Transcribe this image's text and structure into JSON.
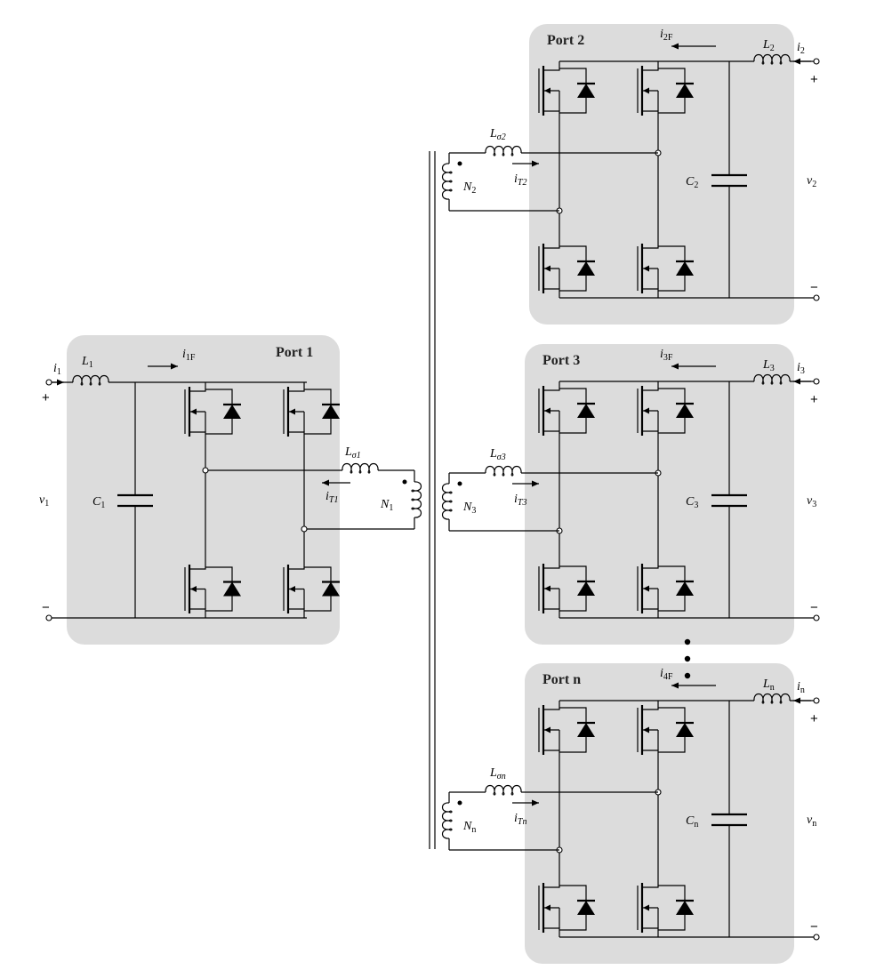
{
  "ports": [
    {
      "id": "1",
      "title": "Port 1",
      "L": "1",
      "C": "1",
      "v": "1",
      "i": "1",
      "iF": "1F",
      "Ls": "σ1",
      "iT": "T1",
      "N": "1"
    },
    {
      "id": "2",
      "title": "Port 2",
      "L": "2",
      "C": "2",
      "v": "2",
      "i": "2",
      "iF": "2F",
      "Ls": "σ2",
      "iT": "T2",
      "N": "2"
    },
    {
      "id": "3",
      "title": "Port 3",
      "L": "3",
      "C": "3",
      "v": "3",
      "i": "3",
      "iF": "3F",
      "Ls": "σ3",
      "iT": "T3",
      "N": "3"
    },
    {
      "id": "n",
      "title": "Port n",
      "L": "n",
      "C": "n",
      "v": "n",
      "i": "n",
      "iF": "4F",
      "Ls": "σn",
      "iT": "Tn",
      "N": "n"
    }
  ],
  "symbols": {
    "L": "L",
    "C": "C",
    "v": "v",
    "i": "i",
    "N": "N",
    "plus": "+",
    "minus": "−"
  },
  "ellipsis_dots": 3
}
